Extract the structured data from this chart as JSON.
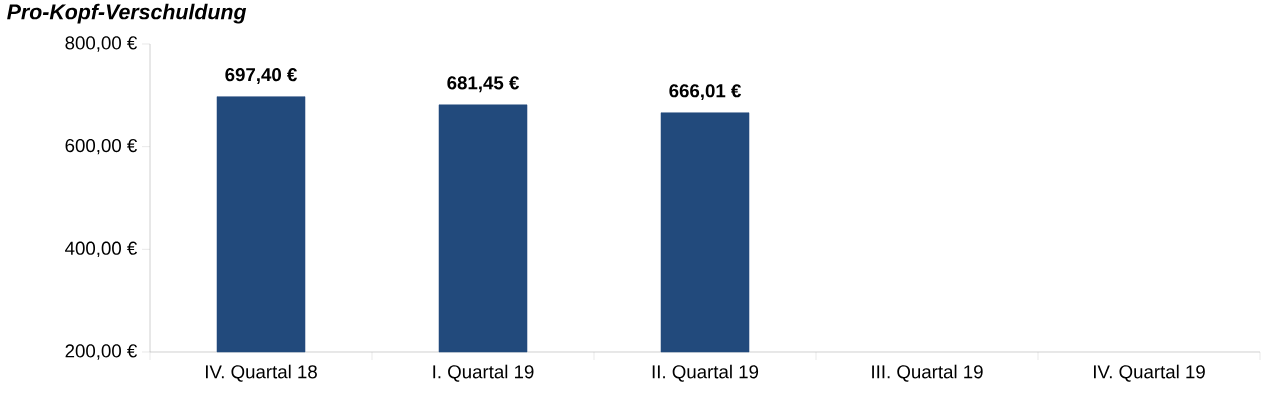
{
  "chart_data": {
    "type": "bar",
    "title": "Pro-Kopf-Verschuldung",
    "categories": [
      "IV. Quartal 18",
      "I. Quartal 19",
      "II. Quartal 19",
      "III. Quartal 19",
      "IV. Quartal 19"
    ],
    "values": [
      697.4,
      681.45,
      666.01,
      null,
      null
    ],
    "value_labels": [
      "697,40 €",
      "681,45 €",
      "666,01 €",
      null,
      null
    ],
    "color": "#224a7c",
    "ylim": [
      200,
      800
    ],
    "yticks": [
      {
        "value": 200,
        "label": "200,00 €"
      },
      {
        "value": 400,
        "label": "400,00 €"
      },
      {
        "value": 600,
        "label": "600,00 €"
      },
      {
        "value": 800,
        "label": "800,00 €"
      }
    ],
    "grid": false
  }
}
